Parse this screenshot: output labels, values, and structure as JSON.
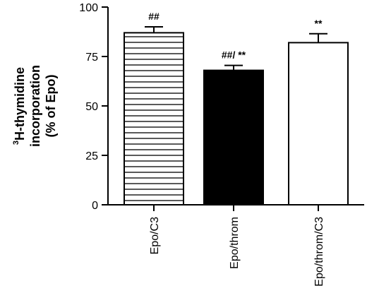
{
  "chart_data": {
    "type": "bar",
    "title": "",
    "xlabel": "",
    "ylabel": {
      "superscript": "3",
      "line1": "H-thymidine",
      "line2": "incorporation",
      "line3": "(% of Epo)"
    },
    "ylim": [
      0,
      100
    ],
    "yticks": [
      0,
      25,
      50,
      75,
      100
    ],
    "ytick_labels": [
      "0",
      "25",
      "50",
      "75",
      "100"
    ],
    "categories": [
      "Epo/C3",
      "Epo/throm",
      "Epo/throm/C3"
    ],
    "values": [
      87,
      68,
      82
    ],
    "errors": [
      3,
      2.5,
      4.5
    ],
    "annotations": [
      "##",
      "##/ **",
      "**"
    ],
    "fills": [
      "hatched-horizontal",
      "solid-black",
      "white"
    ],
    "colors": {
      "stroke": "#000000",
      "solid": "#000000",
      "background": "#ffffff"
    },
    "grid": false,
    "legend": "none"
  }
}
